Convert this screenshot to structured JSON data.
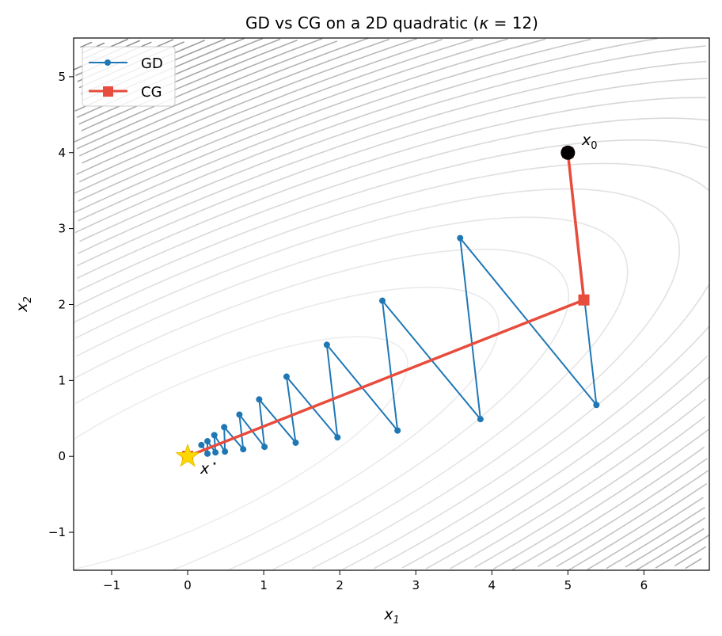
{
  "chart_data": {
    "type": "line",
    "title": "GD vs CG on a 2D quadratic (κ = 12)",
    "title_parts": {
      "prefix": "GD vs CG on a 2D quadratic (",
      "kappa": "κ",
      "suffix": " = 12)"
    },
    "xlabel": {
      "base": "x",
      "sub": "1"
    },
    "ylabel": {
      "base": "x",
      "sub": "2"
    },
    "xlim": [
      -1.5,
      6.86
    ],
    "ylim": [
      -1.5,
      5.51
    ],
    "xticks": [
      -1,
      0,
      1,
      2,
      3,
      4,
      5,
      6
    ],
    "yticks": [
      -1,
      0,
      1,
      2,
      3,
      4,
      5
    ],
    "xtick_labels": [
      "−1",
      "0",
      "1",
      "2",
      "3",
      "4",
      "5",
      "6"
    ],
    "ytick_labels": [
      "−1",
      "0",
      "1",
      "2",
      "3",
      "4",
      "5"
    ],
    "grid": false,
    "legend_position": "top-left",
    "contours": {
      "kappa": 12,
      "colormap": "grays",
      "centered_at": [
        0,
        0
      ]
    },
    "series": [
      {
        "name": "GD",
        "color": "#1f77b4",
        "marker": "circle",
        "x": [
          5,
          5.375,
          3.583,
          3.85,
          2.56,
          2.76,
          1.83,
          1.97,
          1.3,
          1.42,
          0.94,
          1.01,
          0.68,
          0.73,
          0.48,
          0.49,
          0.35,
          0.365,
          0.26,
          0.26,
          0.18
        ],
        "y": [
          4,
          0.677,
          2.875,
          0.49,
          2.05,
          0.34,
          1.47,
          0.25,
          1.05,
          0.18,
          0.75,
          0.125,
          0.55,
          0.094,
          0.385,
          0.063,
          0.28,
          0.052,
          0.2,
          0.035,
          0.15
        ]
      },
      {
        "name": "CG",
        "color": "#e74c3c",
        "marker": "square",
        "x": [
          5,
          5.21,
          0
        ],
        "y": [
          4,
          2.06,
          0
        ]
      }
    ],
    "annotations": [
      {
        "label_base": "x",
        "label_sub": "0",
        "x": 5,
        "y": 4,
        "marker": "black circle"
      },
      {
        "label_base": "x",
        "label_sup": "⋆",
        "x": 0,
        "y": 0,
        "marker": "gold star"
      }
    ]
  }
}
